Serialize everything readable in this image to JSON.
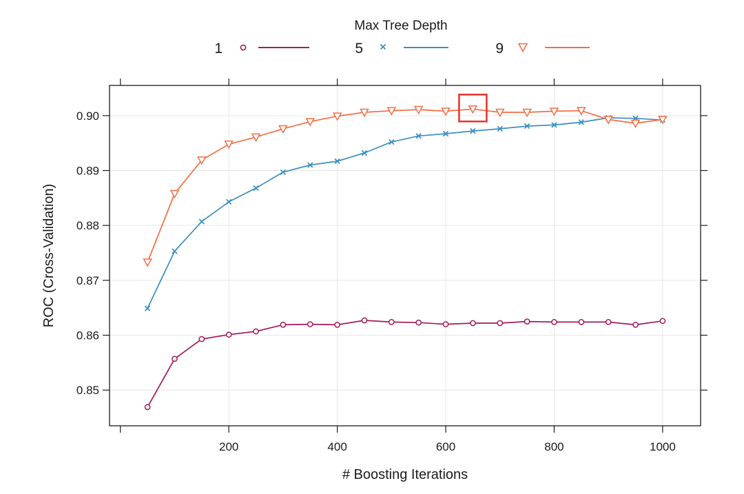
{
  "chart_data": {
    "type": "line",
    "title": "",
    "xlabel": "# Boosting Iterations",
    "ylabel": "ROC (Cross-Validation)",
    "xlim": [
      -20,
      1070
    ],
    "ylim": [
      0.8435,
      0.9055
    ],
    "xticks": [
      200,
      400,
      600,
      800,
      1000
    ],
    "yticks": [
      0.85,
      0.86,
      0.87,
      0.88,
      0.89,
      0.9
    ],
    "ytick_labels": [
      "0.85",
      "0.86",
      "0.87",
      "0.88",
      "0.89",
      "0.90"
    ],
    "xtick_labels": [
      "200",
      "400",
      "600",
      "800",
      "1000"
    ],
    "grid": true,
    "legend": {
      "title": "Max Tree Depth",
      "placement": "top"
    },
    "x": [
      50,
      100,
      150,
      200,
      250,
      300,
      350,
      400,
      450,
      500,
      550,
      600,
      650,
      700,
      750,
      800,
      850,
      900,
      950,
      1000
    ],
    "series": [
      {
        "name": "1",
        "color": "#a3195b",
        "marker": "circle",
        "values": [
          0.8469,
          0.8557,
          0.8593,
          0.8601,
          0.8607,
          0.8619,
          0.862,
          0.8619,
          0.8627,
          0.8624,
          0.8623,
          0.862,
          0.8622,
          0.8622,
          0.8625,
          0.8624,
          0.8624,
          0.8624,
          0.8619,
          0.8626
        ]
      },
      {
        "name": "5",
        "color": "#3a8fc0",
        "marker": "cross",
        "values": [
          0.8649,
          0.8753,
          0.8807,
          0.8843,
          0.8868,
          0.8897,
          0.891,
          0.8917,
          0.8932,
          0.8952,
          0.8963,
          0.8967,
          0.8972,
          0.8976,
          0.8981,
          0.8983,
          0.8988,
          0.8996,
          0.8995,
          0.8992
        ]
      },
      {
        "name": "9",
        "color": "#f46d43",
        "marker": "triangle-down",
        "values": [
          0.8733,
          0.8858,
          0.8919,
          0.8948,
          0.8961,
          0.8976,
          0.8989,
          0.8999,
          0.9006,
          0.9009,
          0.9011,
          0.9008,
          0.9012,
          0.9006,
          0.9006,
          0.9008,
          0.9009,
          0.8993,
          0.8986,
          0.8993
        ]
      }
    ],
    "highlight": {
      "series": "9",
      "x": 650,
      "value": 0.9012,
      "color": "#e8312f"
    }
  }
}
